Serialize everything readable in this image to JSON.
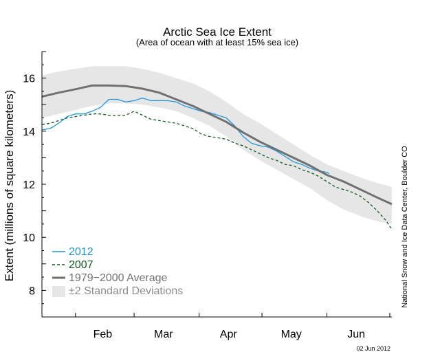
{
  "chart_data": {
    "type": "line",
    "title": "Arctic Sea Ice Extent",
    "subtitle": "(Area of ocean with at least 15% sea ice)",
    "ylabel": "Extent (millions of square kilometers)",
    "xlabel": "",
    "xlim_day_of_year": [
      16,
      183
    ],
    "ylim": [
      7,
      17
    ],
    "yticks": [
      8,
      10,
      12,
      14,
      16
    ],
    "xtick_labels": [
      "Feb",
      "Mar",
      "Apr",
      "May",
      "Jun"
    ],
    "grid": false,
    "legend_position": "bottom-left",
    "credit": "National Snow and Ice Data Center, Boulder CO",
    "date_stamp": "02 Jun 2012",
    "colors": {
      "series_2012": "#1e96dc",
      "series_2007": "#0f5a1e",
      "average": "#707070",
      "std_band": "#e6e6e6",
      "std_label": "#8c8c8c"
    },
    "band": {
      "name": "±2 Standard Deviations",
      "x": [
        16,
        24,
        32,
        40,
        48,
        56,
        64,
        72,
        80,
        88,
        96,
        104,
        112,
        120,
        128,
        136,
        144,
        152,
        160,
        168,
        176,
        183
      ],
      "lower": [
        14.5,
        14.65,
        14.8,
        14.95,
        15.05,
        15.05,
        15.0,
        14.9,
        14.75,
        14.5,
        14.2,
        13.8,
        13.3,
        12.9,
        12.55,
        12.2,
        11.85,
        11.4,
        11.05,
        10.8,
        10.6,
        10.5
      ],
      "upper": [
        16.1,
        16.25,
        16.35,
        16.45,
        16.45,
        16.45,
        16.35,
        16.2,
        16.0,
        15.8,
        15.5,
        15.1,
        14.65,
        14.3,
        13.9,
        13.5,
        13.1,
        12.75,
        12.5,
        12.25,
        12.05,
        11.9
      ]
    },
    "series": [
      {
        "name": "2012",
        "x": [
          16,
          20,
          24,
          28,
          32,
          36,
          40,
          44,
          48,
          52,
          56,
          60,
          64,
          68,
          72,
          76,
          80,
          84,
          88,
          92,
          96,
          100,
          104,
          108,
          112,
          116,
          120,
          124,
          128,
          132,
          136,
          140,
          144,
          148,
          152,
          153
        ],
        "values": [
          14.05,
          14.1,
          14.3,
          14.55,
          14.65,
          14.65,
          14.75,
          14.9,
          15.2,
          15.2,
          15.1,
          15.15,
          15.25,
          15.15,
          15.15,
          15.15,
          15.1,
          14.95,
          14.85,
          14.75,
          14.7,
          14.6,
          14.5,
          14.2,
          13.8,
          13.55,
          13.45,
          13.4,
          13.25,
          13.05,
          12.85,
          12.75,
          12.6,
          12.5,
          12.45,
          12.4
        ]
      },
      {
        "name": "2007",
        "x": [
          16,
          20,
          24,
          28,
          32,
          36,
          40,
          44,
          48,
          52,
          56,
          60,
          64,
          68,
          72,
          76,
          80,
          84,
          88,
          92,
          96,
          100,
          104,
          108,
          112,
          116,
          120,
          124,
          128,
          132,
          136,
          140,
          144,
          148,
          152,
          156,
          160,
          164,
          168,
          172,
          176,
          180,
          183
        ],
        "values": [
          14.25,
          14.3,
          14.4,
          14.5,
          14.55,
          14.6,
          14.65,
          14.65,
          14.6,
          14.6,
          14.6,
          14.75,
          14.6,
          14.45,
          14.4,
          14.35,
          14.3,
          14.2,
          14.1,
          13.9,
          13.8,
          13.75,
          13.7,
          13.55,
          13.45,
          13.3,
          13.15,
          13.0,
          12.9,
          12.75,
          12.7,
          12.55,
          12.45,
          12.3,
          12.1,
          11.9,
          11.8,
          11.7,
          11.55,
          11.3,
          11.0,
          10.65,
          10.3
        ]
      },
      {
        "name": "1979−2000 Average",
        "x": [
          16,
          24,
          32,
          40,
          48,
          56,
          64,
          72,
          80,
          88,
          96,
          104,
          112,
          120,
          128,
          136,
          144,
          152,
          160,
          168,
          176,
          183
        ],
        "values": [
          15.3,
          15.45,
          15.58,
          15.72,
          15.72,
          15.7,
          15.6,
          15.45,
          15.2,
          14.95,
          14.65,
          14.35,
          13.95,
          13.6,
          13.3,
          13.0,
          12.7,
          12.35,
          12.1,
          11.8,
          11.5,
          11.25
        ]
      }
    ],
    "legend": [
      {
        "key": "2012",
        "label": "2012",
        "style": "solid"
      },
      {
        "key": "2007",
        "label": "2007",
        "style": "dashed"
      },
      {
        "key": "average",
        "label": "1979−2000 Average",
        "style": "thick"
      },
      {
        "key": "band",
        "label": "±2 Standard Deviations",
        "style": "band"
      }
    ]
  }
}
